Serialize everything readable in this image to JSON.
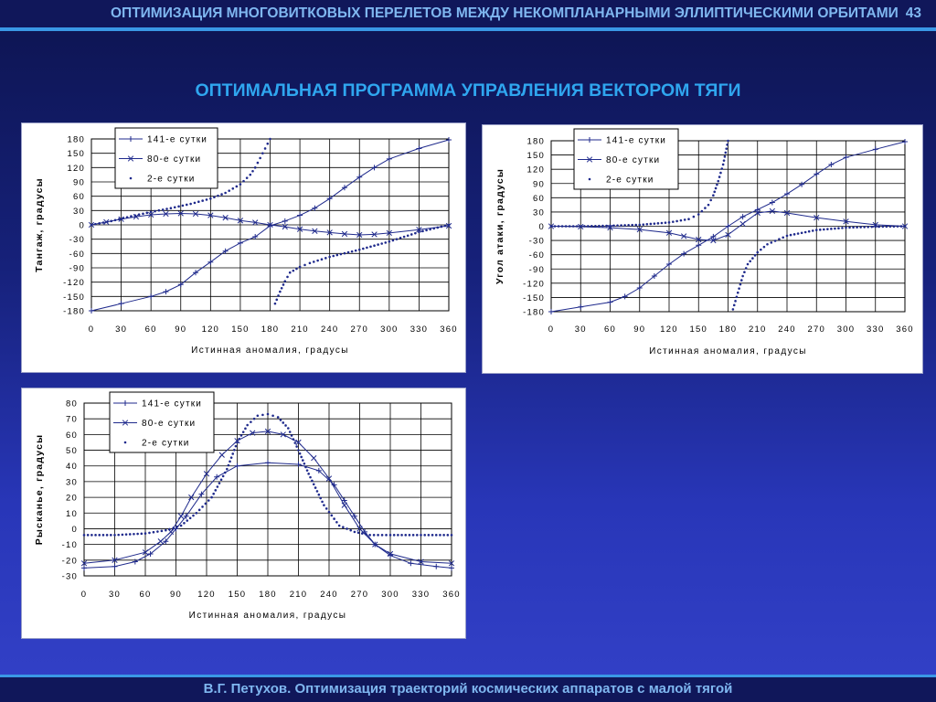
{
  "header": {
    "title": "ОПТИМИЗАЦИЯ МНОГОВИТКОВЫХ ПЕРЕЛЕТОВ МЕЖДУ НЕКОМПЛАНАРНЫМИ ЭЛЛИПТИЧЕСКИМИ ОРБИТАМИ",
    "page_number": "43"
  },
  "slide_title": "ОПТИМАЛЬНАЯ ПРОГРАММА УПРАВЛЕНИЯ ВЕКТОРОМ ТЯГИ",
  "footer": "В.Г. Петухов. Оптимизация траекторий космических аппаратов с малой тягой",
  "colors": {
    "series": "#1f2a8c",
    "grid": "#000000",
    "accent": "#3a98e6"
  },
  "chart_data": [
    {
      "id": "pitch",
      "type": "line",
      "title": "",
      "xlabel": "Истинная аномалия, градусы",
      "ylabel": "Тангаж, градусы",
      "xlim": [
        0,
        360
      ],
      "ylim": [
        -180,
        180
      ],
      "xticks": [
        0,
        30,
        60,
        90,
        120,
        150,
        180,
        210,
        240,
        270,
        300,
        330,
        360
      ],
      "yticks": [
        180,
        150,
        120,
        90,
        60,
        30,
        0,
        -30,
        -60,
        -90,
        -120,
        -150,
        -180
      ],
      "legend_position": "top-left",
      "series": [
        {
          "name": "141-е сутки",
          "marker": "plus",
          "wrap": true,
          "x": [
            0,
            30,
            60,
            75,
            90,
            105,
            120,
            135,
            150,
            165,
            180,
            195,
            210,
            225,
            240,
            255,
            270,
            285,
            300,
            330,
            360
          ],
          "y": [
            -180,
            -165,
            -150,
            -140,
            -125,
            -100,
            -78,
            -55,
            -38,
            -25,
            -2,
            8,
            20,
            35,
            55,
            78,
            100,
            120,
            138,
            160,
            178
          ]
        },
        {
          "name": "80-е сутки",
          "marker": "x",
          "wrap": false,
          "x": [
            0,
            15,
            30,
            45,
            60,
            75,
            90,
            105,
            120,
            135,
            150,
            165,
            180,
            195,
            210,
            225,
            240,
            255,
            270,
            285,
            300,
            330,
            360
          ],
          "y": [
            0,
            6,
            12,
            17,
            21,
            23,
            24,
            23,
            20,
            15,
            9,
            5,
            0,
            -4,
            -9,
            -13,
            -16,
            -19,
            -21,
            -20,
            -17,
            -10,
            -2
          ]
        },
        {
          "name": "2-е сутки",
          "marker": "dot",
          "wrap": true,
          "x": [
            0,
            20,
            40,
            60,
            80,
            100,
            120,
            135,
            150,
            160,
            165,
            170,
            175,
            180,
            185,
            190,
            195,
            200,
            210,
            220,
            240,
            270,
            300,
            330,
            360
          ],
          "y": [
            0,
            8,
            18,
            27,
            35,
            44,
            55,
            67,
            85,
            105,
            120,
            140,
            160,
            180,
            -165,
            -140,
            -118,
            -100,
            -88,
            -80,
            -67,
            -52,
            -35,
            -15,
            0
          ]
        }
      ]
    },
    {
      "id": "attack",
      "type": "line",
      "title": "",
      "xlabel": "Истинная аномалия, градусы",
      "ylabel": "Угол атаки, градусы",
      "xlim": [
        0,
        360
      ],
      "ylim": [
        -180,
        180
      ],
      "xticks": [
        0,
        30,
        60,
        90,
        120,
        150,
        180,
        210,
        240,
        270,
        300,
        330,
        360
      ],
      "yticks": [
        180,
        150,
        120,
        90,
        60,
        30,
        0,
        -30,
        -60,
        -90,
        -120,
        -150,
        -180
      ],
      "legend_position": "top-left",
      "series": [
        {
          "name": "141-е сутки",
          "marker": "plus",
          "wrap": false,
          "x": [
            0,
            30,
            60,
            75,
            90,
            105,
            120,
            135,
            150,
            165,
            180,
            195,
            210,
            225,
            240,
            255,
            270,
            285,
            300,
            330,
            360
          ],
          "y": [
            -180,
            -170,
            -160,
            -148,
            -130,
            -105,
            -80,
            -58,
            -40,
            -22,
            0,
            20,
            35,
            50,
            68,
            88,
            110,
            130,
            145,
            162,
            178
          ]
        },
        {
          "name": "80-е сутки",
          "marker": "x",
          "wrap": false,
          "x": [
            0,
            30,
            60,
            90,
            120,
            135,
            150,
            165,
            180,
            195,
            210,
            225,
            240,
            270,
            300,
            330,
            360
          ],
          "y": [
            0,
            -1,
            -3,
            -7,
            -14,
            -21,
            -28,
            -30,
            -18,
            5,
            28,
            32,
            28,
            18,
            10,
            3,
            0
          ]
        },
        {
          "name": "2-е сутки",
          "marker": "dot",
          "wrap": true,
          "x": [
            0,
            30,
            60,
            90,
            120,
            140,
            150,
            160,
            165,
            170,
            175,
            180,
            185,
            190,
            195,
            200,
            210,
            220,
            240,
            270,
            300,
            330,
            360
          ],
          "y": [
            0,
            0,
            1,
            3,
            8,
            15,
            25,
            45,
            65,
            95,
            130,
            180,
            -175,
            -140,
            -105,
            -80,
            -55,
            -38,
            -20,
            -8,
            -3,
            -1,
            0
          ]
        }
      ]
    },
    {
      "id": "yaw",
      "type": "line",
      "title": "",
      "xlabel": "Истинная аномалия, градусы",
      "ylabel": "Рысканье, градусы",
      "xlim": [
        0,
        360
      ],
      "ylim": [
        -30,
        80
      ],
      "xticks": [
        0,
        30,
        60,
        90,
        120,
        150,
        180,
        210,
        240,
        270,
        300,
        330,
        360
      ],
      "yticks": [
        80,
        70,
        60,
        50,
        40,
        30,
        20,
        10,
        0,
        -10,
        -20,
        -30
      ],
      "legend_position": "top-center",
      "series": [
        {
          "name": "141-е сутки",
          "marker": "plus",
          "wrap": false,
          "x": [
            0,
            30,
            50,
            65,
            80,
            90,
            100,
            115,
            130,
            150,
            180,
            210,
            230,
            245,
            255,
            265,
            275,
            285,
            300,
            320,
            345,
            360
          ],
          "y": [
            -25,
            -24,
            -21,
            -16,
            -8,
            0,
            8,
            22,
            33,
            40,
            42,
            41,
            37,
            28,
            18,
            8,
            -2,
            -10,
            -17,
            -22,
            -24,
            -25
          ]
        },
        {
          "name": "80-е сутки",
          "marker": "x",
          "wrap": false,
          "x": [
            0,
            30,
            60,
            75,
            85,
            95,
            105,
            120,
            135,
            150,
            165,
            180,
            195,
            210,
            225,
            240,
            255,
            270,
            285,
            300,
            330,
            360
          ],
          "y": [
            -22,
            -20,
            -15,
            -8,
            -2,
            8,
            20,
            35,
            47,
            56,
            61,
            62,
            60,
            55,
            45,
            32,
            15,
            0,
            -10,
            -16,
            -21,
            -22
          ]
        },
        {
          "name": "2-е сутки",
          "marker": "dot",
          "wrap": false,
          "x": [
            0,
            30,
            60,
            80,
            95,
            110,
            125,
            140,
            150,
            160,
            170,
            180,
            190,
            200,
            210,
            220,
            235,
            250,
            265,
            280,
            300,
            330,
            360
          ],
          "y": [
            -4,
            -4,
            -3,
            -1,
            2,
            10,
            20,
            38,
            55,
            66,
            72,
            73,
            71,
            64,
            50,
            35,
            15,
            2,
            -2,
            -4,
            -4,
            -4,
            -4
          ]
        }
      ]
    }
  ]
}
